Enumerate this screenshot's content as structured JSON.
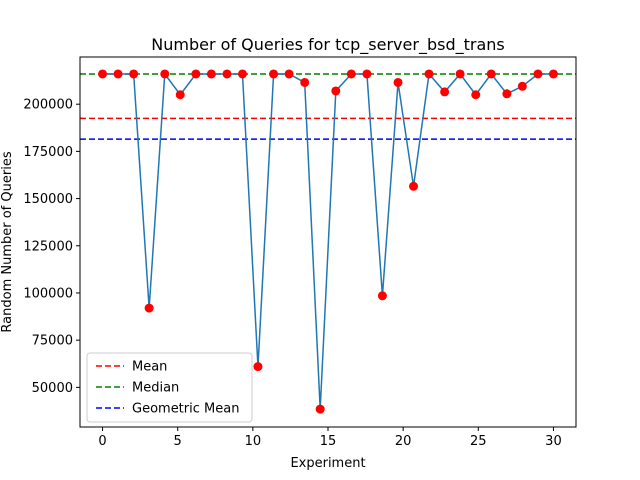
{
  "chart_data": {
    "type": "line",
    "title": "Number of Queries for tcp_server_bsd_trans",
    "xlabel": "Experiment",
    "ylabel": "Random Number of Queries",
    "xlim": [
      -1.5,
      31.5
    ],
    "ylim": [
      29000,
      225000
    ],
    "xticks": [
      0,
      5,
      10,
      15,
      20,
      25,
      30
    ],
    "yticks": [
      50000,
      75000,
      100000,
      125000,
      150000,
      175000,
      200000
    ],
    "grid": false,
    "legend_position": "lower-left",
    "x": [
      0,
      1.03,
      2.07,
      3.1,
      4.14,
      5.17,
      6.21,
      7.24,
      8.28,
      9.31,
      10.34,
      11.38,
      12.41,
      13.45,
      14.48,
      15.52,
      16.55,
      17.59,
      18.62,
      19.66,
      20.69,
      21.72,
      22.76,
      23.79,
      24.83,
      25.86,
      26.9,
      27.93,
      28.97,
      30
    ],
    "series": [
      {
        "values": [
          216000,
          216000,
          216000,
          92000,
          216000,
          205000,
          216000,
          216000,
          216000,
          216000,
          61000,
          216000,
          216000,
          211500,
          38500,
          207000,
          216000,
          216000,
          98500,
          211500,
          156500,
          216000,
          206500,
          216000,
          205000,
          216000,
          205500,
          209500,
          216000,
          216000
        ],
        "line_color": "#1f77b4",
        "marker_color": "#ff0000"
      }
    ],
    "reference_lines": [
      {
        "name": "Mean",
        "value": 192500,
        "color": "#ff0000"
      },
      {
        "name": "Median",
        "value": 216000,
        "color": "#008000"
      },
      {
        "name": "Geometric Mean",
        "value": 181500,
        "color": "#0000ff"
      }
    ]
  }
}
